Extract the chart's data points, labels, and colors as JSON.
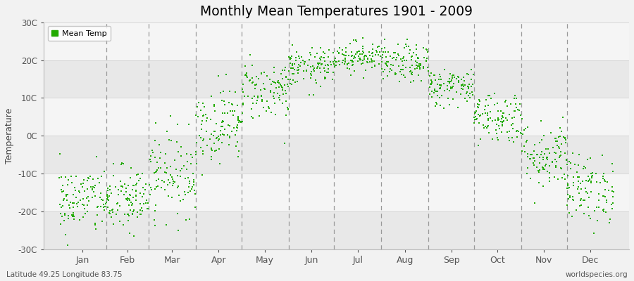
{
  "title": "Monthly Mean Temperatures 1901 - 2009",
  "ylabel": "Temperature",
  "bottom_left_label": "Latitude 49.25 Longitude 83.75",
  "bottom_right_label": "worldspecies.org",
  "legend_label": "Mean Temp",
  "background_color": "#f2f2f2",
  "plot_bg_color": "#ebebeb",
  "band_color_light": "#f5f5f5",
  "band_color_dark": "#e8e8e8",
  "dot_color": "#22aa00",
  "ylim": [
    -30,
    30
  ],
  "ytick_labels": [
    "-30C",
    "-20C",
    "-10C",
    "0C",
    "10C",
    "20C",
    "30C"
  ],
  "ytick_values": [
    -30,
    -20,
    -10,
    0,
    10,
    20,
    30
  ],
  "months": [
    "Jan",
    "Feb",
    "Mar",
    "Apr",
    "May",
    "Jun",
    "Jul",
    "Aug",
    "Sep",
    "Oct",
    "Nov",
    "Dec"
  ],
  "monthly_mean_temps": [
    -17,
    -17,
    -10,
    3,
    12,
    18,
    21,
    19,
    13,
    5,
    -5,
    -14
  ],
  "monthly_std_temps": [
    4.5,
    4.5,
    5.5,
    5.0,
    4.0,
    2.5,
    2.0,
    2.5,
    2.5,
    3.5,
    4.5,
    4.5
  ],
  "n_years": 109,
  "seed": 42,
  "figsize": [
    9.0,
    4.0
  ],
  "dpi": 100
}
